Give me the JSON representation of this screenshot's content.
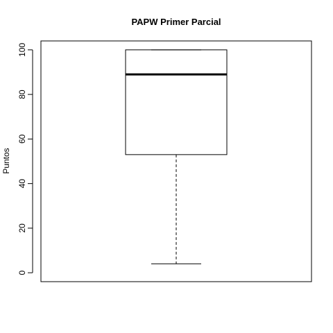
{
  "chart_data": {
    "type": "boxplot",
    "title": "PAPW Primer Parcial",
    "xlabel": "",
    "ylabel": "Puntos",
    "ylim": [
      -4,
      104
    ],
    "yticks": [
      0,
      20,
      40,
      60,
      80,
      100
    ],
    "ytick_labels": [
      "0",
      "20",
      "40",
      "60",
      "80",
      "100"
    ],
    "grid": false,
    "boxes": [
      {
        "min": 4,
        "q1": 53,
        "median": 89,
        "q3": 100,
        "max": 100
      }
    ]
  }
}
